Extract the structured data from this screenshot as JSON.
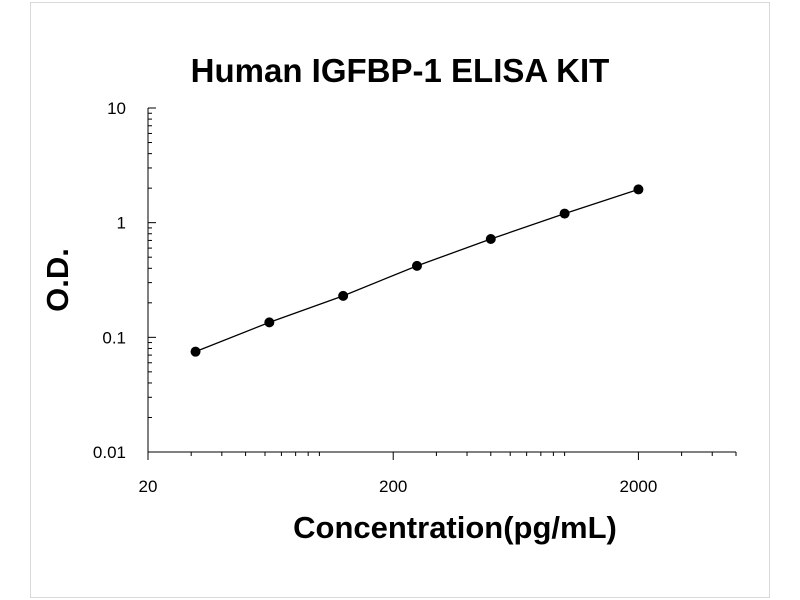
{
  "chart_data": {
    "type": "line",
    "title": "Human IGFBP-1 ELISA KIT",
    "xlabel": "Concentration(pg/mL)",
    "ylabel": "O.D.",
    "x_scale": "log",
    "y_scale": "log",
    "xlim": [
      20,
      5000
    ],
    "ylim": [
      0.01,
      10
    ],
    "x_ticks": [
      "20",
      "200",
      "2000"
    ],
    "y_ticks": [
      "0.01",
      "0.1",
      "1",
      "10"
    ],
    "grid": false,
    "legend": "none",
    "series": [
      {
        "points": [
          {
            "x": 31.25,
            "y": 0.075
          },
          {
            "x": 62.5,
            "y": 0.135
          },
          {
            "x": 125,
            "y": 0.23
          },
          {
            "x": 250,
            "y": 0.42
          },
          {
            "x": 500,
            "y": 0.72
          },
          {
            "x": 1000,
            "y": 1.2
          },
          {
            "x": 2000,
            "y": 1.95
          }
        ],
        "color": "#000000"
      }
    ]
  }
}
